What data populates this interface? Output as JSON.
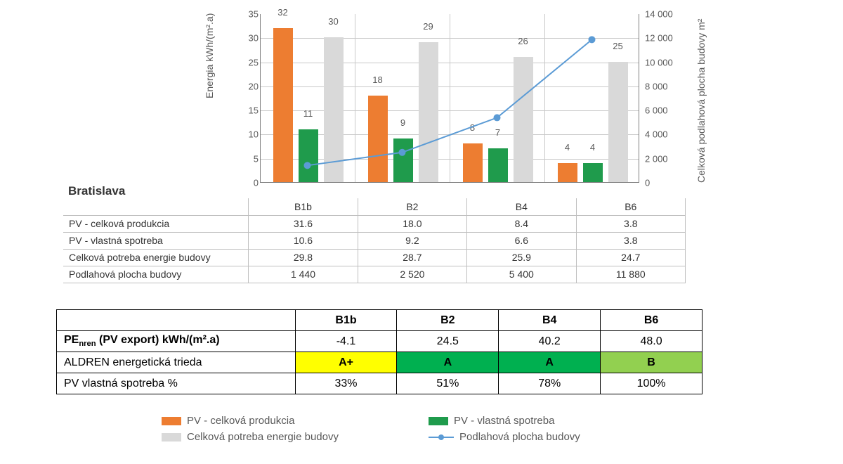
{
  "city": "Bratislava",
  "chart": {
    "type": "bar+line",
    "categories": [
      "B1b",
      "B2",
      "B4",
      "B6"
    ],
    "left_axis": {
      "label": "Energia     kWh/(m².a)",
      "min": 0,
      "max": 35,
      "step": 5
    },
    "right_axis": {
      "label": "Celková podlahová plocha budovy   m²",
      "min": 0,
      "max": 14000,
      "step": 2000
    },
    "series": {
      "pv_total": {
        "label": "PV  - celková produkcia",
        "color": "#ed7d31",
        "values": [
          32,
          18,
          8,
          4
        ]
      },
      "pv_self": {
        "label": "PV - vlastná spotreba",
        "color": "#1f9b4c",
        "values": [
          11,
          9,
          7,
          4
        ]
      },
      "energy_dem": {
        "label": "Celková potreba energie budovy",
        "color": "#d9d9d9",
        "values": [
          30,
          29,
          26,
          25
        ]
      },
      "floor_area": {
        "label": "Podlahová plocha budovy",
        "color": "#5b9bd5",
        "values": [
          1440,
          2520,
          5400,
          11880
        ]
      }
    },
    "plot_bg": "#ffffff",
    "grid_color": "#c9c9c9",
    "font_size": 13
  },
  "table1": {
    "rows": [
      {
        "label": "PV  - celková produkcia",
        "vals": [
          "31.6",
          "18.0",
          "8.4",
          "3.8"
        ]
      },
      {
        "label": "PV - vlastná spotreba",
        "vals": [
          "10.6",
          "9.2",
          "6.6",
          "3.8"
        ]
      },
      {
        "label": "Celková potreba energie budovy",
        "vals": [
          "29.8",
          "28.7",
          "25.9",
          "24.7"
        ]
      },
      {
        "label": "Podlahová plocha budovy",
        "vals": [
          "1 440",
          "2 520",
          "5 400",
          "11 880"
        ]
      }
    ]
  },
  "table2": {
    "cols": [
      "B1b",
      "B2",
      "B4",
      "B6"
    ],
    "rows": [
      {
        "label_html": "PE<sub>nren</sub> (PV export) kWh/(m².a)",
        "bold_label": true,
        "vals": [
          "-4.1",
          "24.5",
          "40.2",
          "48.0"
        ],
        "bg": [
          "#ffffff",
          "#ffffff",
          "#ffffff",
          "#ffffff"
        ],
        "bold": false
      },
      {
        "label_html": "ALDREN energetická trieda",
        "bold_label": false,
        "vals": [
          "A+",
          "A",
          "A",
          "B"
        ],
        "bg": [
          "#ffff00",
          "#00b050",
          "#00b050",
          "#92d050"
        ],
        "bold": true
      },
      {
        "label_html": "PV vlastná spotreba  %",
        "bold_label": false,
        "vals": [
          "33%",
          "51%",
          "78%",
          "100%"
        ],
        "bg": [
          "#ffffff",
          "#ffffff",
          "#ffffff",
          "#ffffff"
        ],
        "bold": false
      }
    ]
  },
  "legend": [
    {
      "type": "swatch",
      "color": "#ed7d31",
      "text": "PV  - celková produkcia"
    },
    {
      "type": "swatch",
      "color": "#1f9b4c",
      "text": "PV - vlastná spotreba"
    },
    {
      "type": "swatch",
      "color": "#d9d9d9",
      "text": "Celková potreba energie budovy"
    },
    {
      "type": "line",
      "color": "#5b9bd5",
      "text": "Podlahová plocha budovy"
    }
  ]
}
